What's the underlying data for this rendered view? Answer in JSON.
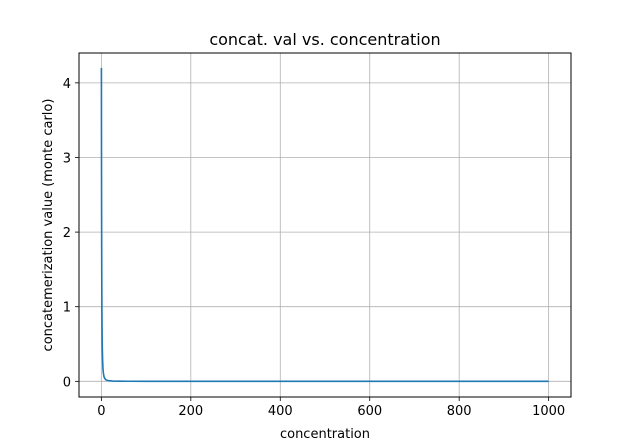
{
  "chart_data": {
    "type": "line",
    "title": "concat. val vs. concentration",
    "xlabel": "concentration",
    "ylabel": "concatemerization value (monte carlo)",
    "xlim": [
      -50,
      1050
    ],
    "ylim": [
      -0.21,
      4.4
    ],
    "xticks": [
      0,
      200,
      400,
      600,
      800,
      1000
    ],
    "yticks": [
      0,
      1,
      2,
      3,
      4
    ],
    "xtick_labels": [
      "0",
      "200",
      "400",
      "600",
      "800",
      "1000"
    ],
    "ytick_labels": [
      "0",
      "1",
      "2",
      "3",
      "4"
    ],
    "grid": true,
    "legend": "none",
    "series": [
      {
        "color": "#1f77b4",
        "x": [
          0.1,
          0.2,
          0.35,
          0.5,
          0.75,
          1,
          1.3,
          1.7,
          2.2,
          2.8,
          3.5,
          4.5,
          6,
          8,
          10,
          13,
          17,
          25,
          40,
          60,
          100,
          200,
          400,
          600,
          800,
          1000
        ],
        "y": [
          4.2,
          3.6,
          2.85,
          2.3,
          1.7,
          1.25,
          0.9,
          0.62,
          0.42,
          0.28,
          0.18,
          0.11,
          0.06,
          0.035,
          0.022,
          0.013,
          0.008,
          0.004,
          0.002,
          0.001,
          0.0005,
          0.0002,
          0.0001,
          0.0001,
          0.0,
          0.0
        ]
      }
    ]
  }
}
